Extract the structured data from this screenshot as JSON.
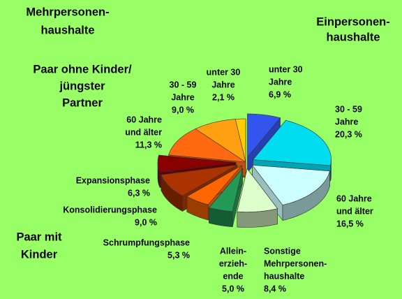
{
  "chart_data": {
    "type": "pie3d",
    "annotations": [
      [
        "Mehrpersonen-",
        "haushalte"
      ],
      [
        "Einpersonen-",
        "haushalte"
      ],
      [
        "Paar ohne Kinder/",
        "jüngster",
        "Partner"
      ],
      [
        "Paar mit",
        "Kinder"
      ]
    ],
    "categories": [
      [
        "unter 30",
        "Jahre"
      ],
      [
        "30 - 59",
        "Jahre"
      ],
      [
        "60 Jahre",
        "und älter"
      ],
      [
        "Sonstige",
        "Mehrpersonen-",
        "haushalte"
      ],
      [
        "Allein-",
        "erzieh-",
        "ende"
      ],
      [
        "Schrumpfungsphase"
      ],
      [
        "Konsolidierungsphase"
      ],
      [
        "Expansionsphase"
      ],
      [
        "60 Jahre",
        "und älter"
      ],
      [
        "30 - 59",
        "Jahre"
      ],
      [
        "unter 30",
        "Jahre"
      ]
    ],
    "values": [
      6.9,
      20.3,
      16.5,
      8.4,
      5.0,
      5.3,
      9.0,
      6.3,
      11.3,
      9.0,
      2.1
    ],
    "value_labels": [
      "6,9 %",
      "20,3 %",
      "16,5 %",
      "8,4 %",
      "5,0 %",
      "5,3 %",
      "9,0 %",
      "6,3 %",
      "11,3 %",
      "9,0 %",
      "2,1 %"
    ],
    "colors": [
      "#3355ee",
      "#00dcf0",
      "#ccffff",
      "#ddffcc",
      "#229955",
      "#ff6600",
      "#aa3300",
      "#880000",
      "#ff6a10",
      "#ffa010",
      "#ffcc00"
    ]
  }
}
